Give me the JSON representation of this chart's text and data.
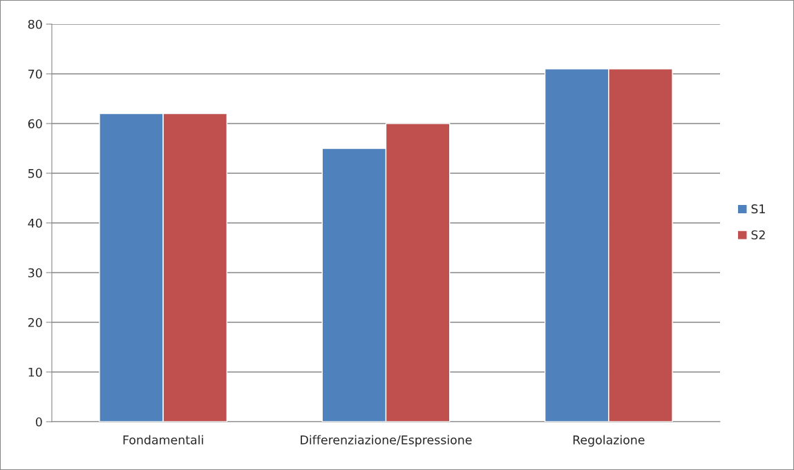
{
  "chart_data": {
    "type": "bar",
    "categories": [
      "Fondamentali",
      "Differenziazione/Espressione",
      "Regolazione"
    ],
    "series": [
      {
        "name": "S1",
        "color": "#4f81bd",
        "values": [
          62,
          55,
          71
        ]
      },
      {
        "name": "S2",
        "color": "#c0504d",
        "values": [
          62,
          60,
          71
        ]
      }
    ],
    "ylim": [
      0,
      80
    ],
    "yticks": [
      0,
      10,
      20,
      30,
      40,
      50,
      60,
      70,
      80
    ],
    "grid": "y",
    "legend": "right"
  }
}
